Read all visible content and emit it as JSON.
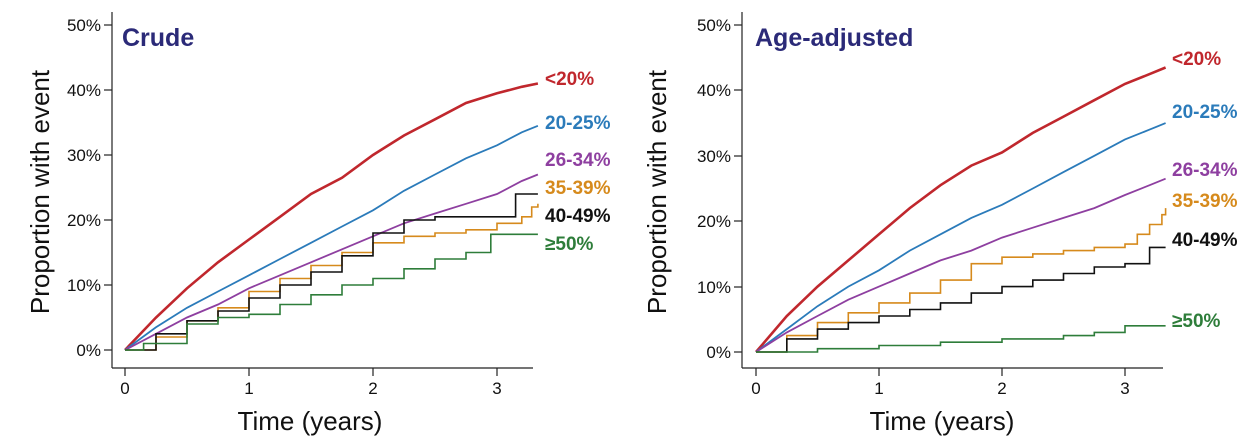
{
  "chart_data": [
    {
      "type": "line",
      "title": "Crude",
      "xlabel": "Time (years)",
      "ylabel": "Proportion with event",
      "xlim": [
        0,
        3.35
      ],
      "ylim": [
        0,
        0.5
      ],
      "xticks": [
        0,
        1,
        2,
        3
      ],
      "xtick_labels": [
        "0",
        "1",
        "2",
        "3"
      ],
      "yticks": [
        0,
        0.1,
        0.2,
        0.3,
        0.4,
        0.5
      ],
      "ytick_labels": [
        "0%",
        "10%",
        "20%",
        "30%",
        "40%",
        "50%"
      ],
      "grid": false,
      "series": [
        {
          "name": "<20%",
          "color": "#c0272d",
          "step": false,
          "x": [
            0,
            0.25,
            0.5,
            0.75,
            1.0,
            1.25,
            1.5,
            1.75,
            2.0,
            2.25,
            2.5,
            2.75,
            3.0,
            3.2,
            3.33
          ],
          "y": [
            0,
            0.05,
            0.095,
            0.135,
            0.17,
            0.205,
            0.24,
            0.265,
            0.3,
            0.33,
            0.355,
            0.38,
            0.395,
            0.405,
            0.41
          ]
        },
        {
          "name": "20-25%",
          "color": "#2b7bba",
          "step": false,
          "x": [
            0,
            0.25,
            0.5,
            0.75,
            1.0,
            1.25,
            1.5,
            1.75,
            2.0,
            2.25,
            2.5,
            2.75,
            3.0,
            3.2,
            3.33
          ],
          "y": [
            0,
            0.035,
            0.065,
            0.09,
            0.115,
            0.14,
            0.165,
            0.19,
            0.215,
            0.245,
            0.27,
            0.295,
            0.315,
            0.335,
            0.345
          ]
        },
        {
          "name": "26-34%",
          "color": "#8e3fa0",
          "step": false,
          "x": [
            0,
            0.25,
            0.5,
            0.75,
            1.0,
            1.25,
            1.5,
            1.75,
            2.0,
            2.25,
            2.5,
            2.75,
            3.0,
            3.2,
            3.33
          ],
          "y": [
            0,
            0.025,
            0.05,
            0.07,
            0.095,
            0.115,
            0.135,
            0.155,
            0.175,
            0.195,
            0.21,
            0.225,
            0.24,
            0.26,
            0.27
          ]
        },
        {
          "name": "35-39%",
          "color": "#d68a1c",
          "step": true,
          "x": [
            0,
            0.25,
            0.5,
            0.75,
            1.0,
            1.25,
            1.5,
            1.75,
            2.0,
            2.25,
            2.5,
            2.75,
            3.0,
            3.2,
            3.28,
            3.33
          ],
          "y": [
            0,
            0.02,
            0.045,
            0.065,
            0.09,
            0.11,
            0.13,
            0.15,
            0.165,
            0.175,
            0.18,
            0.185,
            0.195,
            0.205,
            0.22,
            0.225
          ]
        },
        {
          "name": "40-49%",
          "color": "#111111",
          "step": true,
          "x": [
            0,
            0.25,
            0.5,
            0.75,
            1.0,
            1.25,
            1.5,
            1.75,
            2.0,
            2.25,
            2.5,
            2.75,
            3.0,
            3.15,
            3.33
          ],
          "y": [
            0,
            0.025,
            0.045,
            0.06,
            0.08,
            0.1,
            0.12,
            0.145,
            0.18,
            0.2,
            0.205,
            0.205,
            0.205,
            0.24,
            0.24
          ]
        },
        {
          "name": "≥50%",
          "color": "#2e7d3a",
          "step": true,
          "x": [
            0,
            0.15,
            0.5,
            0.75,
            1.0,
            1.25,
            1.5,
            1.75,
            2.0,
            2.25,
            2.5,
            2.75,
            2.95,
            3.33
          ],
          "y": [
            0,
            0.01,
            0.04,
            0.05,
            0.055,
            0.07,
            0.085,
            0.1,
            0.11,
            0.125,
            0.14,
            0.15,
            0.178,
            0.178
          ]
        }
      ]
    },
    {
      "type": "line",
      "title": "Age-adjusted",
      "xlabel": "Time (years)",
      "ylabel": "Proportion with event",
      "xlim": [
        0,
        3.35
      ],
      "ylim": [
        0,
        0.5
      ],
      "xticks": [
        0,
        1,
        2,
        3
      ],
      "xtick_labels": [
        "0",
        "1",
        "2",
        "3"
      ],
      "yticks": [
        0,
        0.1,
        0.2,
        0.3,
        0.4,
        0.5
      ],
      "ytick_labels": [
        "0%",
        "10%",
        "20%",
        "30%",
        "40%",
        "50%"
      ],
      "grid": false,
      "series": [
        {
          "name": "<20%",
          "color": "#c0272d",
          "step": false,
          "x": [
            0,
            0.25,
            0.5,
            0.75,
            1.0,
            1.25,
            1.5,
            1.75,
            2.0,
            2.25,
            2.5,
            2.75,
            3.0,
            3.2,
            3.33
          ],
          "y": [
            0,
            0.055,
            0.1,
            0.14,
            0.18,
            0.22,
            0.255,
            0.285,
            0.305,
            0.335,
            0.36,
            0.385,
            0.41,
            0.425,
            0.435
          ]
        },
        {
          "name": "20-25%",
          "color": "#2b7bba",
          "step": false,
          "x": [
            0,
            0.25,
            0.5,
            0.75,
            1.0,
            1.25,
            1.5,
            1.75,
            2.0,
            2.25,
            2.5,
            2.75,
            3.0,
            3.2,
            3.33
          ],
          "y": [
            0,
            0.035,
            0.07,
            0.1,
            0.125,
            0.155,
            0.18,
            0.205,
            0.225,
            0.25,
            0.275,
            0.3,
            0.325,
            0.34,
            0.35
          ]
        },
        {
          "name": "26-34%",
          "color": "#8e3fa0",
          "step": false,
          "x": [
            0,
            0.25,
            0.5,
            0.75,
            1.0,
            1.25,
            1.5,
            1.75,
            2.0,
            2.25,
            2.5,
            2.75,
            3.0,
            3.2,
            3.33
          ],
          "y": [
            0,
            0.03,
            0.055,
            0.08,
            0.1,
            0.12,
            0.14,
            0.155,
            0.175,
            0.19,
            0.205,
            0.22,
            0.24,
            0.255,
            0.265
          ]
        },
        {
          "name": "35-39%",
          "color": "#d68a1c",
          "step": true,
          "x": [
            0,
            0.25,
            0.5,
            0.75,
            1.0,
            1.25,
            1.5,
            1.75,
            2.0,
            2.25,
            2.5,
            2.75,
            3.0,
            3.1,
            3.2,
            3.3,
            3.33
          ],
          "y": [
            0,
            0.025,
            0.045,
            0.06,
            0.075,
            0.09,
            0.11,
            0.135,
            0.145,
            0.15,
            0.155,
            0.16,
            0.165,
            0.18,
            0.195,
            0.21,
            0.22
          ]
        },
        {
          "name": "40-49%",
          "color": "#111111",
          "step": true,
          "x": [
            0,
            0.25,
            0.5,
            0.75,
            1.0,
            1.25,
            1.5,
            1.75,
            2.0,
            2.25,
            2.5,
            2.75,
            3.0,
            3.2,
            3.33
          ],
          "y": [
            0,
            0.02,
            0.035,
            0.045,
            0.055,
            0.065,
            0.075,
            0.09,
            0.1,
            0.11,
            0.12,
            0.13,
            0.135,
            0.16,
            0.16
          ]
        },
        {
          "name": "≥50%",
          "color": "#2e7d3a",
          "step": true,
          "x": [
            0,
            0.5,
            1.0,
            1.5,
            2.0,
            2.5,
            2.75,
            3.0,
            3.33
          ],
          "y": [
            0,
            0.005,
            0.01,
            0.015,
            0.02,
            0.025,
            0.03,
            0.04,
            0.04
          ]
        }
      ]
    }
  ]
}
